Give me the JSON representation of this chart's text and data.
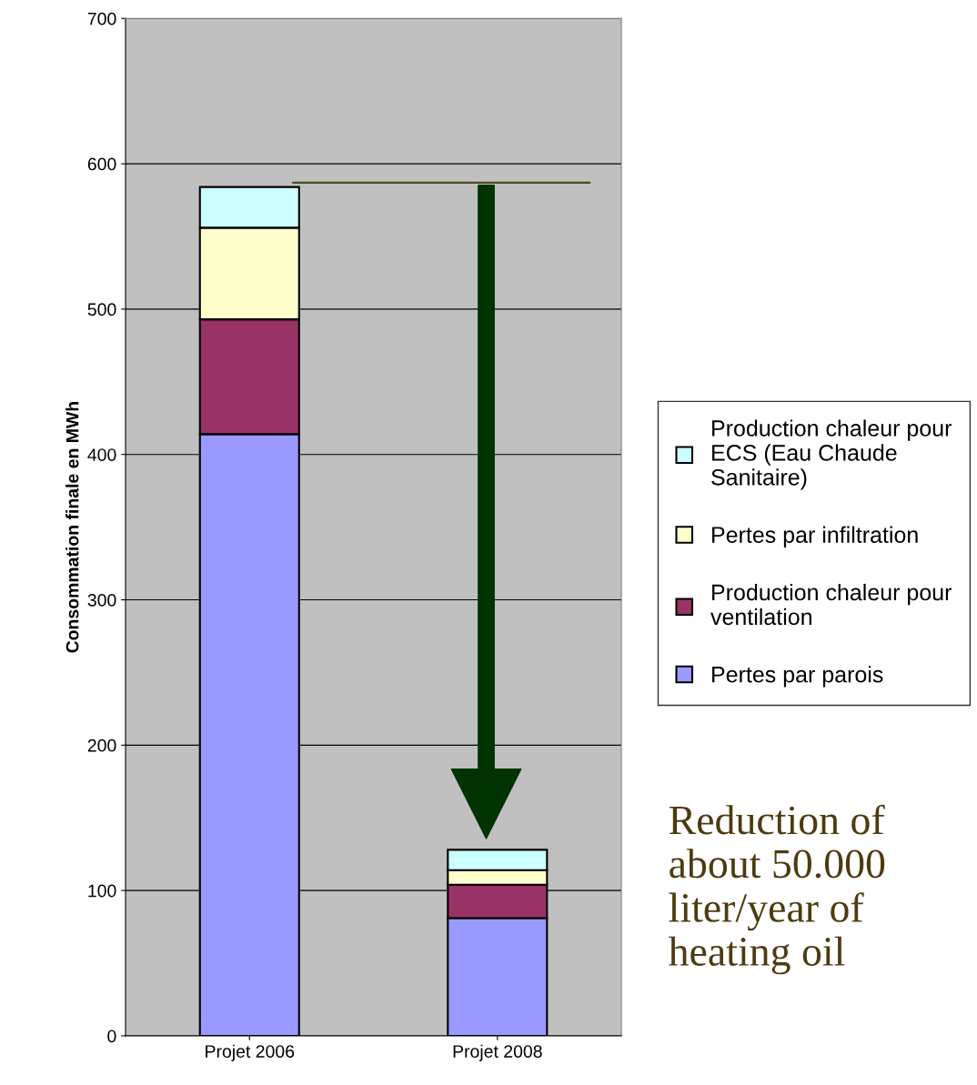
{
  "chart_data": {
    "type": "bar",
    "stacked": true,
    "ylabel": "Consommation finale en MWh",
    "categories": [
      "Projet 2006",
      "Projet 2008"
    ],
    "series": [
      {
        "name": "Pertes par parois",
        "color": "#9999ff",
        "values": [
          414,
          81
        ]
      },
      {
        "name": "Production chaleur pour ventilation",
        "color": "#993366",
        "values": [
          79,
          23
        ]
      },
      {
        "name": "Pertes par infiltration",
        "color": "#ffffcc",
        "values": [
          63,
          10
        ]
      },
      {
        "name": "Production chaleur pour ECS (Eau Chaude Sanitaire)",
        "color": "#ccffff",
        "values": [
          28,
          14
        ]
      }
    ],
    "ylim": [
      0,
      700
    ],
    "yticks": [
      0,
      100,
      200,
      300,
      400,
      500,
      600,
      700
    ],
    "grid": "y",
    "legend": "right",
    "ref_lines": [
      {
        "axis": "y",
        "value": 587,
        "color": "#4d4d1a"
      }
    ],
    "annotations": [
      "Reduction of about 50.000 liter/year of heating oil"
    ]
  }
}
